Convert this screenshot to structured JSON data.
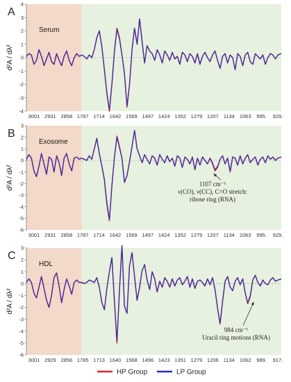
{
  "legend": [
    {
      "name": "HP Group",
      "color": "#e0242b"
    },
    {
      "name": "LP Group",
      "color": "#1f2fbf"
    }
  ],
  "colors": {
    "pink_region": "#f3d9c9",
    "green_region": "#e6f1df",
    "zero_line": "#9aa0a6"
  },
  "chart_data": [
    {
      "panel": "A",
      "sample": "Serum",
      "type": "line",
      "ylabel": "d²A / dλ²",
      "ylim": [
        -4,
        4
      ],
      "yticks": [
        4,
        3,
        2,
        1,
        0,
        -1,
        -2,
        -3,
        -4
      ],
      "x_tick_labels": [
        "3001",
        "2931",
        "2858",
        "1787",
        "1714",
        "1642",
        "1569",
        "1497",
        "1424",
        "1352",
        "1279",
        "1207",
        "1134",
        "1063",
        "995.",
        "929."
      ],
      "x": [
        0,
        0.15,
        0.3,
        0.45,
        0.6,
        0.75,
        0.9,
        1.05,
        1.2,
        1.35,
        1.5,
        1.65,
        1.8,
        1.95,
        2.1,
        2.25,
        2.4,
        2.55,
        2.7,
        2.85,
        3.0,
        3.15,
        3.3,
        3.45,
        3.6,
        3.75,
        3.9,
        4.05,
        4.2,
        4.35,
        4.5,
        4.65,
        4.8,
        4.95,
        5.1,
        5.25,
        5.4,
        5.55,
        5.7,
        5.85,
        6.0,
        6.15,
        6.3,
        6.45,
        6.6,
        6.75,
        6.9,
        7.05,
        7.2,
        7.35,
        7.5,
        7.65,
        7.8,
        7.95,
        8.1,
        8.25,
        8.4,
        8.55,
        8.7,
        8.85,
        9.0,
        9.15,
        9.3,
        9.45,
        9.6,
        9.75,
        9.9,
        10.05,
        10.2,
        10.35,
        10.5,
        10.65,
        10.8,
        10.95,
        11.1,
        11.25,
        11.4,
        11.55,
        11.7,
        11.85,
        12.0,
        12.15,
        12.3,
        12.45,
        12.6,
        12.75,
        12.9,
        13.05,
        13.2,
        13.35,
        13.5,
        13.65,
        13.8,
        13.95,
        14.1,
        14.25,
        14.4,
        14.55,
        14.7,
        14.85,
        15.0,
        15.2
      ],
      "highlight_regions": [
        {
          "from": 0,
          "to": 3.3,
          "color": "pink"
        },
        {
          "from": 3.3,
          "to": 15.2,
          "color": "green"
        }
      ],
      "series": [
        {
          "name": "LP Group",
          "values": [
            0.1,
            0.3,
            0.2,
            -0.5,
            -0.2,
            0.6,
            0.1,
            -0.6,
            -0.1,
            0.4,
            -0.3,
            -0.5,
            0.3,
            -0.2,
            -0.6,
            0.1,
            0.5,
            -0.2,
            -0.6,
            0.0,
            0.3,
            0.1,
            0.2,
            0.1,
            -0.1,
            0.2,
            0.0,
            0.6,
            1.5,
            2.0,
            0.8,
            -0.9,
            -2.6,
            -3.9,
            -2.0,
            0.5,
            2.1,
            1.4,
            0.2,
            -1.2,
            -3.6,
            -2.0,
            0.6,
            2.2,
            1.0,
            2.9,
            1.2,
            -0.4,
            0.9,
            0.5,
            0.3,
            -0.2,
            0.6,
            0.2,
            -0.4,
            0.5,
            0.2,
            -0.2,
            0.4,
            -0.1,
            0.1,
            -0.5,
            0.4,
            0.2,
            -0.3,
            0.3,
            0.1,
            -0.4,
            0.3,
            -0.5,
            0.1,
            0.4,
            0.0,
            -0.3,
            0.2,
            0.5,
            -0.2,
            -0.8,
            0.1,
            0.3,
            -0.4,
            0.2,
            0.0,
            -0.9,
            0.3,
            0.1,
            -0.6,
            0.2,
            0.4,
            -0.3,
            -0.5,
            0.3,
            0.1,
            -0.1,
            0.2,
            -0.5,
            0.0,
            0.3,
            0.2,
            -0.1,
            0.2,
            0.3
          ]
        },
        {
          "name": "HP Group",
          "values": [
            0.1,
            0.3,
            0.2,
            -0.5,
            -0.2,
            0.6,
            0.1,
            -0.6,
            -0.1,
            0.4,
            -0.3,
            -0.5,
            0.3,
            -0.2,
            -0.6,
            0.1,
            0.5,
            -0.2,
            -0.6,
            0.0,
            0.3,
            0.1,
            0.2,
            0.1,
            -0.1,
            0.2,
            0.0,
            0.6,
            1.5,
            2.0,
            0.8,
            -0.9,
            -2.7,
            -4.0,
            -2.0,
            0.5,
            2.2,
            1.5,
            0.2,
            -1.2,
            -3.7,
            -2.0,
            0.6,
            2.2,
            1.0,
            2.9,
            1.2,
            -0.4,
            0.9,
            0.5,
            0.3,
            -0.2,
            0.6,
            0.2,
            -0.4,
            0.5,
            0.2,
            -0.2,
            0.4,
            -0.1,
            0.1,
            -0.5,
            0.4,
            0.2,
            -0.3,
            0.3,
            0.1,
            -0.4,
            0.3,
            -0.5,
            0.1,
            0.4,
            0.0,
            -0.3,
            0.2,
            0.5,
            -0.2,
            -0.8,
            0.1,
            0.3,
            -0.4,
            0.2,
            0.0,
            -0.9,
            0.3,
            0.1,
            -0.6,
            0.2,
            0.4,
            -0.3,
            -0.5,
            0.3,
            0.1,
            -0.1,
            0.2,
            -0.5,
            0.0,
            0.3,
            0.2,
            -0.1,
            0.2,
            0.3
          ]
        }
      ],
      "annotations": []
    },
    {
      "panel": "B",
      "sample": "Exosome",
      "type": "line",
      "ylabel": "d²A / dλ²",
      "ylim": [
        -6,
        3
      ],
      "yticks": [
        3,
        2,
        1,
        0,
        -1,
        -2,
        -3,
        -4,
        -5,
        -6
      ],
      "x_tick_labels": [
        "3001",
        "2931",
        "2858",
        "1787",
        "1714",
        "1642",
        "1569",
        "1497",
        "1424",
        "1352",
        "1279",
        "1207",
        "1134",
        "1063",
        "995.",
        "929."
      ],
      "x": [
        0,
        0.15,
        0.3,
        0.45,
        0.6,
        0.75,
        0.9,
        1.05,
        1.2,
        1.35,
        1.5,
        1.65,
        1.8,
        1.95,
        2.1,
        2.25,
        2.4,
        2.55,
        2.7,
        2.85,
        3.0,
        3.15,
        3.3,
        3.45,
        3.6,
        3.75,
        3.9,
        4.05,
        4.2,
        4.35,
        4.5,
        4.65,
        4.8,
        4.95,
        5.1,
        5.25,
        5.4,
        5.55,
        5.7,
        5.85,
        6.0,
        6.15,
        6.3,
        6.45,
        6.6,
        6.75,
        6.9,
        7.05,
        7.2,
        7.35,
        7.5,
        7.65,
        7.8,
        7.95,
        8.1,
        8.25,
        8.4,
        8.55,
        8.7,
        8.85,
        9.0,
        9.15,
        9.3,
        9.45,
        9.6,
        9.75,
        9.9,
        10.05,
        10.2,
        10.35,
        10.5,
        10.65,
        10.8,
        10.95,
        11.1,
        11.25,
        11.4,
        11.55,
        11.7,
        11.85,
        12.0,
        12.15,
        12.3,
        12.45,
        12.6,
        12.75,
        12.9,
        13.05,
        13.2,
        13.35,
        13.5,
        13.65,
        13.8,
        13.95,
        14.1,
        14.25,
        14.4,
        14.55,
        14.7,
        14.85,
        15.0,
        15.2
      ],
      "highlight_regions": [
        {
          "from": 0,
          "to": 3.3,
          "color": "pink"
        },
        {
          "from": 3.3,
          "to": 15.2,
          "color": "green"
        }
      ],
      "series": [
        {
          "name": "LP Group",
          "values": [
            0.1,
            0.5,
            0.2,
            -0.9,
            -1.4,
            -0.5,
            0.6,
            -0.3,
            -1.2,
            0.3,
            0.1,
            -1.0,
            0.4,
            -0.2,
            -1.3,
            0.2,
            0.6,
            -0.3,
            -0.9,
            0.2,
            0.3,
            0.1,
            0.2,
            0.1,
            0.0,
            0.4,
            0.1,
            1.0,
            1.9,
            0.6,
            -0.5,
            -1.6,
            -3.6,
            -5.1,
            -2.2,
            0.3,
            2.0,
            1.1,
            0.2,
            -1.9,
            -1.3,
            -0.1,
            1.2,
            2.6,
            1.0,
            0.4,
            -0.2,
            0.5,
            0.1,
            -0.3,
            0.4,
            0.2,
            -0.4,
            0.5,
            0.1,
            -0.2,
            0.4,
            -0.1,
            0.2,
            -0.5,
            0.4,
            0.2,
            -0.6,
            0.3,
            0.1,
            -0.3,
            0.3,
            -0.8,
            0.2,
            -0.4,
            0.3,
            0.0,
            -0.3,
            0.2,
            -0.2,
            -0.8,
            -0.5,
            0.1,
            0.4,
            -0.3,
            0.2,
            -0.9,
            0.3,
            0.2,
            -0.4,
            0.4,
            -0.3,
            0.2,
            0.5,
            -0.2,
            0.1,
            0.3,
            -0.4,
            0.1,
            0.3,
            -0.2,
            0.4,
            0.1,
            0.3,
            0.0,
            0.2,
            0.3
          ]
        },
        {
          "name": "HP Group",
          "values": [
            0.1,
            0.5,
            0.2,
            -0.9,
            -1.4,
            -0.5,
            0.6,
            -0.3,
            -1.2,
            0.3,
            0.1,
            -1.0,
            0.4,
            -0.2,
            -1.3,
            0.2,
            0.6,
            -0.3,
            -0.9,
            0.2,
            0.3,
            0.1,
            0.2,
            0.1,
            0.0,
            0.4,
            0.1,
            1.0,
            1.9,
            0.6,
            -0.5,
            -1.7,
            -3.8,
            -5.2,
            -2.2,
            0.3,
            2.1,
            1.2,
            0.2,
            -1.9,
            -1.3,
            -0.1,
            1.2,
            2.6,
            1.0,
            0.4,
            -0.2,
            0.5,
            0.1,
            -0.3,
            0.4,
            0.2,
            -0.4,
            0.5,
            0.1,
            -0.2,
            0.4,
            -0.1,
            0.2,
            -0.5,
            0.4,
            0.2,
            -0.6,
            0.3,
            0.1,
            -0.3,
            0.3,
            -0.8,
            0.2,
            -0.4,
            0.3,
            0.0,
            -0.3,
            0.2,
            -0.3,
            -0.9,
            -0.6,
            0.1,
            0.4,
            -0.3,
            0.2,
            -1.0,
            0.3,
            0.2,
            -0.4,
            0.4,
            -0.3,
            0.2,
            0.5,
            -0.2,
            0.1,
            0.3,
            -0.4,
            0.1,
            0.3,
            -0.2,
            0.4,
            0.1,
            0.3,
            0.0,
            0.2,
            0.3
          ]
        }
      ],
      "annotations": [
        {
          "lines": [
            "1107 cm⁻¹",
            "ν(CO), ν(CC), C=O stretch:",
            "ribose ring (RNA)"
          ],
          "point_x": 11.2,
          "point_y": -0.9
        }
      ]
    },
    {
      "panel": "C",
      "sample": "HDL",
      "type": "line",
      "ylabel": "d²A / dλ²",
      "ylim": [
        -6,
        3
      ],
      "yticks": [
        3,
        2,
        1,
        0,
        -1,
        -2,
        -3,
        -4,
        -5,
        -6
      ],
      "x_tick_labels": [
        "3001",
        "2929",
        "2856",
        "1785",
        "1713",
        "1640",
        "1568",
        "1496",
        "1423",
        "1351",
        "1279",
        "1206",
        "1134",
        "1062",
        "989.",
        "917."
      ],
      "x": [
        0,
        0.15,
        0.3,
        0.45,
        0.6,
        0.75,
        0.9,
        1.05,
        1.2,
        1.35,
        1.5,
        1.65,
        1.8,
        1.95,
        2.1,
        2.25,
        2.4,
        2.55,
        2.7,
        2.85,
        3.0,
        3.15,
        3.3,
        3.45,
        3.6,
        3.75,
        3.9,
        4.05,
        4.2,
        4.35,
        4.5,
        4.65,
        4.8,
        4.95,
        5.1,
        5.25,
        5.4,
        5.55,
        5.7,
        5.85,
        6.0,
        6.15,
        6.3,
        6.45,
        6.6,
        6.75,
        6.9,
        7.05,
        7.2,
        7.35,
        7.5,
        7.65,
        7.8,
        7.95,
        8.1,
        8.25,
        8.4,
        8.55,
        8.7,
        8.85,
        9.0,
        9.15,
        9.3,
        9.45,
        9.6,
        9.75,
        9.9,
        10.05,
        10.2,
        10.35,
        10.5,
        10.65,
        10.8,
        10.95,
        11.1,
        11.25,
        11.4,
        11.55,
        11.7,
        11.85,
        12.0,
        12.15,
        12.3,
        12.45,
        12.6,
        12.75,
        12.9,
        13.05,
        13.2,
        13.35,
        13.5,
        13.65,
        13.8,
        13.95,
        14.1,
        14.25,
        14.4,
        14.55,
        14.7,
        14.85,
        15.0,
        15.2
      ],
      "highlight_regions": [
        {
          "from": 0,
          "to": 3.3,
          "color": "pink"
        },
        {
          "from": 3.3,
          "to": 15.2,
          "color": "green"
        }
      ],
      "series": [
        {
          "name": "LP Group",
          "values": [
            0.1,
            0.4,
            0.1,
            -0.8,
            -1.2,
            -0.3,
            0.6,
            -0.4,
            -1.4,
            -2.0,
            -1.0,
            0.5,
            0.9,
            -0.2,
            -1.6,
            -0.5,
            0.4,
            -0.2,
            -0.9,
            0.1,
            0.3,
            0.1,
            0.1,
            0.0,
            0.1,
            0.3,
            0.2,
            0.1,
            0.5,
            -0.3,
            -1.6,
            -2.2,
            -0.4,
            1.0,
            2.2,
            -1.5,
            -4.8,
            -0.6,
            3.2,
            -1.9,
            -2.5,
            1.5,
            2.6,
            0.6,
            -1.4,
            -0.3,
            1.1,
            1.6,
            0.3,
            -0.5,
            1.0,
            0.4,
            -0.7,
            0.2,
            -0.3,
            0.5,
            0.2,
            -0.3,
            0.4,
            -0.2,
            0.3,
            0.5,
            -0.1,
            0.2,
            0.6,
            -0.3,
            0.4,
            -0.4,
            0.2,
            0.3,
            0.1,
            -0.2,
            0.4,
            -0.1,
            0.5,
            -0.5,
            -2.1,
            -3.3,
            -1.5,
            0.2,
            0.6,
            -0.3,
            -0.6,
            0.2,
            0.5,
            -0.1,
            0.4,
            -0.8,
            -1.6,
            -1.0,
            0.3,
            0.7,
            0.1,
            -0.2,
            0.3,
            0.0,
            -0.1,
            0.3,
            0.5,
            0.2,
            0.3,
            0.4
          ]
        },
        {
          "name": "HP Group",
          "values": [
            0.1,
            0.4,
            0.1,
            -0.8,
            -1.2,
            -0.3,
            0.6,
            -0.4,
            -1.4,
            -2.0,
            -1.0,
            0.5,
            0.9,
            -0.2,
            -1.6,
            -0.5,
            0.4,
            -0.2,
            -0.9,
            0.1,
            0.3,
            0.1,
            0.1,
            0.0,
            0.1,
            0.3,
            0.2,
            0.1,
            0.5,
            -0.3,
            -1.6,
            -2.2,
            -0.4,
            1.0,
            2.2,
            -1.5,
            -5.0,
            -0.6,
            3.2,
            -1.9,
            -2.5,
            1.5,
            2.6,
            0.6,
            -1.4,
            -0.3,
            1.1,
            1.6,
            0.3,
            -0.5,
            1.0,
            0.4,
            -0.7,
            0.2,
            -0.3,
            0.5,
            0.2,
            -0.3,
            0.4,
            -0.2,
            0.3,
            0.5,
            -0.1,
            0.2,
            0.6,
            -0.3,
            0.4,
            -0.4,
            0.2,
            0.3,
            0.1,
            -0.2,
            0.4,
            -0.1,
            0.5,
            -0.5,
            -2.1,
            -3.4,
            -1.5,
            0.2,
            0.6,
            -0.3,
            -0.6,
            0.2,
            0.5,
            -0.1,
            0.4,
            -0.8,
            -1.7,
            -1.1,
            0.3,
            0.7,
            0.1,
            -0.2,
            0.3,
            0.0,
            -0.1,
            0.3,
            0.5,
            0.2,
            0.3,
            0.4
          ]
        }
      ],
      "annotations": [
        {
          "lines": [
            "984 cm⁻¹",
            "Uracil ring motions (RNA)"
          ],
          "point_x": 13.6,
          "point_y": -1.3
        }
      ]
    }
  ]
}
